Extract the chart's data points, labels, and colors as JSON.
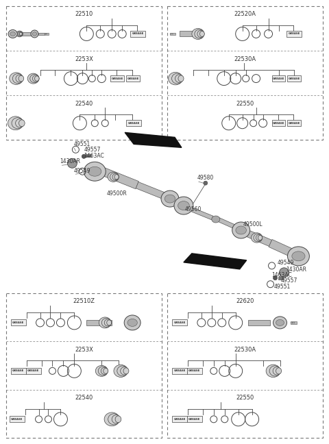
{
  "bg_color": "#ffffff",
  "border_color": "#777777",
  "line_color": "#444444",
  "text_color": "#333333",
  "top_left_sections": [
    "22510",
    "2253X",
    "22540"
  ],
  "top_right_sections": [
    "22520A",
    "22530A",
    "22550"
  ],
  "bot_left_sections": [
    "22510Z",
    "2253X",
    "22540"
  ],
  "bot_right_sections": [
    "22620",
    "22530A",
    "22550"
  ]
}
